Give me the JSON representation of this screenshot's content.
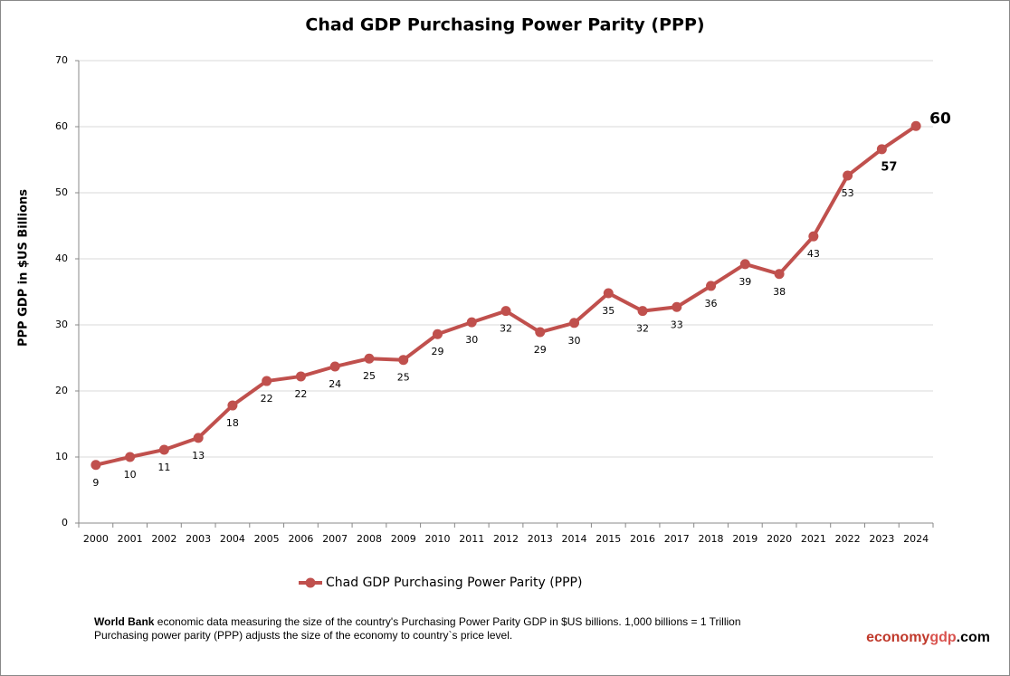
{
  "chart_data": {
    "type": "line",
    "title": "Chad GDP Purchasing Power Parity (PPP)",
    "y_label": "PPP GDP in $US Billions",
    "categories": [
      "2000",
      "2001",
      "2002",
      "2003",
      "2004",
      "2005",
      "2006",
      "2007",
      "2008",
      "2009",
      "2010",
      "2011",
      "2012",
      "2013",
      "2014",
      "2015",
      "2016",
      "2017",
      "2018",
      "2019",
      "2020",
      "2021",
      "2022",
      "2023",
      "2024"
    ],
    "series": [
      {
        "name": "Chad GDP Purchasing Power Parity (PPP)",
        "color": "#c0504d",
        "values": [
          8.8,
          10.0,
          11.1,
          12.9,
          17.8,
          21.5,
          22.2,
          23.7,
          24.9,
          24.7,
          28.6,
          30.4,
          32.1,
          28.9,
          30.3,
          34.8,
          32.1,
          32.7,
          35.9,
          39.2,
          37.7,
          43.4,
          52.6,
          56.6,
          60.1
        ],
        "value_labels": [
          "9",
          "10",
          "11",
          "13",
          "18",
          "22",
          "22",
          "24",
          "25",
          "25",
          "29",
          "30",
          "32",
          "29",
          "30",
          "35",
          "32",
          "33",
          "36",
          "39",
          "38",
          "43",
          "53",
          "57",
          "60"
        ]
      }
    ],
    "ylim": [
      0,
      70
    ],
    "yticks": [
      0,
      10,
      20,
      30,
      40,
      50,
      60,
      70
    ],
    "grid": true,
    "legend": "bottom"
  },
  "footer": {
    "source": "World Bank",
    "line1": " economic data  measuring the size of the country's Purchasing Power Parity GDP in $US billions. 1,000 billions = 1 Trillion",
    "line2": "Purchasing power parity (PPP) adjusts the size of the economy to country`s price level.",
    "brand": [
      "economy",
      "gdp",
      ".com"
    ]
  }
}
